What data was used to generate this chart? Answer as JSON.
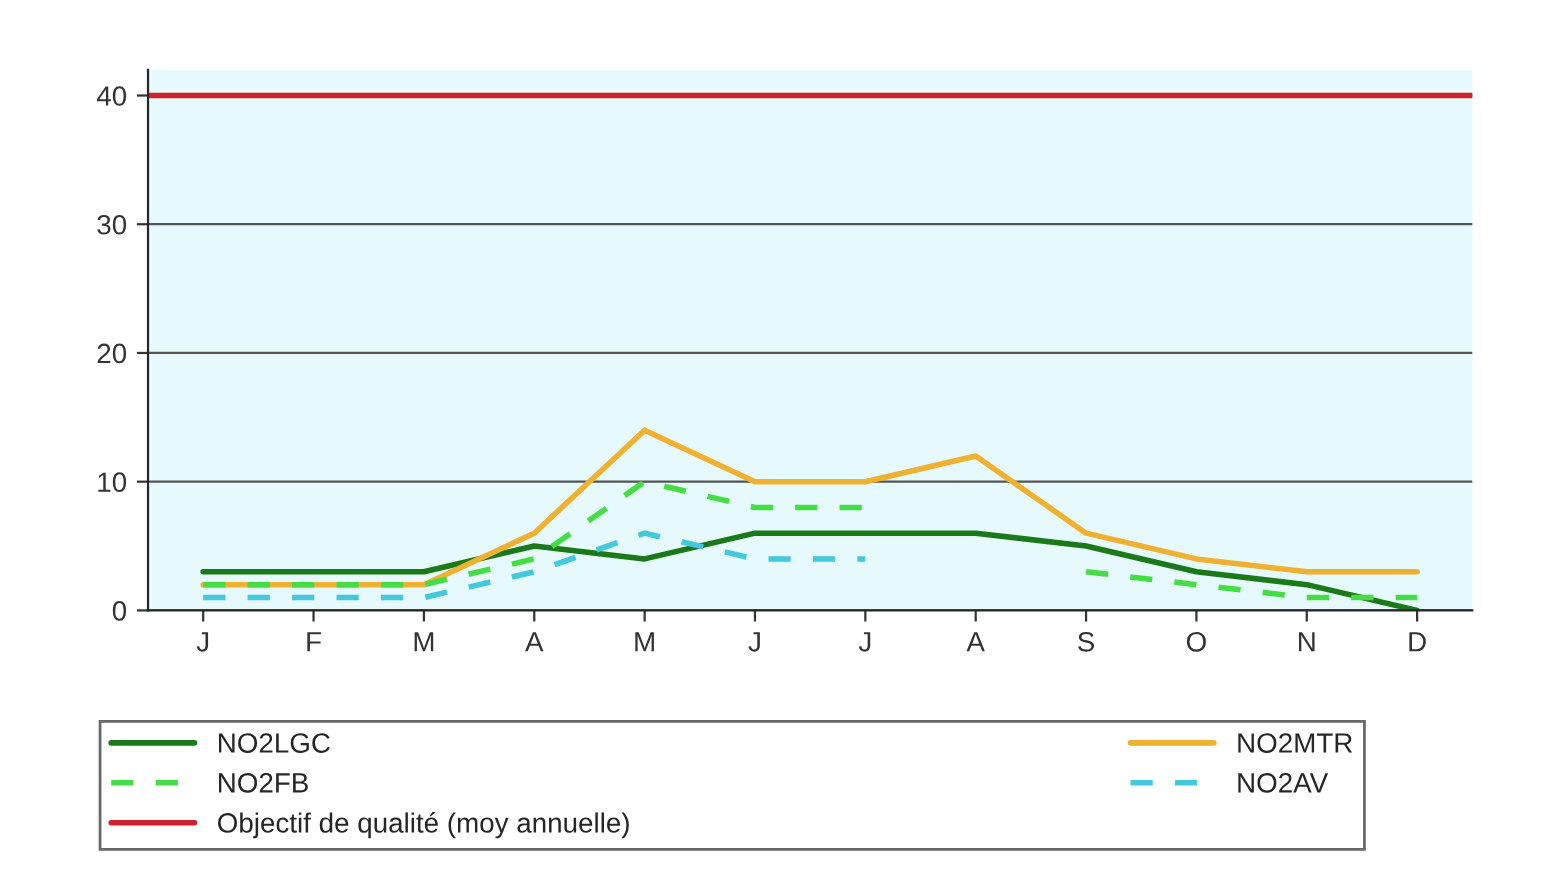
{
  "chart_data": {
    "type": "line",
    "categories": [
      "J",
      "F",
      "M",
      "A",
      "M",
      "J",
      "J",
      "A",
      "S",
      "O",
      "N",
      "D"
    ],
    "series": [
      {
        "name": "NO2LGC",
        "color": "#1a7a1a",
        "line_style": "solid",
        "values": [
          3,
          3,
          3,
          5,
          4,
          6,
          6,
          6,
          5,
          3,
          2,
          0
        ]
      },
      {
        "name": "NO2MTR",
        "color": "#f0b030",
        "line_style": "solid",
        "values": [
          2,
          2,
          2,
          6,
          14,
          10,
          10,
          12,
          6,
          4,
          3,
          3
        ]
      },
      {
        "name": "NO2FB",
        "color": "#44dd44",
        "line_style": "dashed",
        "values": [
          2,
          2,
          2,
          4,
          10,
          8,
          8,
          null,
          3,
          2,
          1,
          1
        ]
      },
      {
        "name": "NO2AV",
        "color": "#44c8dd",
        "line_style": "dashed",
        "values": [
          1,
          1,
          1,
          3,
          6,
          4,
          4,
          null,
          null,
          null,
          null,
          null
        ]
      }
    ],
    "ref_lines": [
      {
        "axis": "y",
        "value": 40,
        "label": "Objectif de qualité (moy annuelle)",
        "color": "#d02030",
        "line_style": "solid"
      }
    ],
    "ylim": [
      0,
      42
    ],
    "yticks": [
      0,
      10,
      20,
      30,
      40
    ],
    "grid": "y",
    "legend": "bottom",
    "marker": "none"
  }
}
